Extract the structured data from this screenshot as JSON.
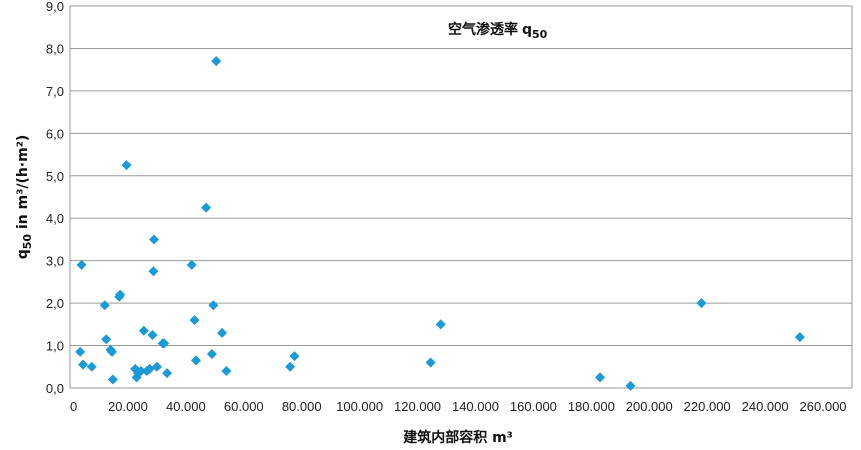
{
  "chart_data": {
    "type": "scatter",
    "title": "空气渗透率",
    "title_symbol": "q",
    "title_subscript": "50",
    "xlabel": "建筑内部容积 m³",
    "ylabel_main": "q",
    "ylabel_sub": "50",
    "ylabel_rest": " in m³/(h·m²)",
    "xlim": [
      0,
      270000
    ],
    "ylim": [
      0,
      9
    ],
    "x_ticks": [
      0,
      20000,
      40000,
      60000,
      80000,
      100000,
      120000,
      140000,
      160000,
      180000,
      200000,
      220000,
      240000,
      260000
    ],
    "x_tick_labels": [
      "0",
      "20.000",
      "40.000",
      "60.000",
      "80.000",
      "100.000",
      "120.000",
      "140.000",
      "160.000",
      "180.000",
      "200.000",
      "220.000",
      "240.000",
      "260.000"
    ],
    "y_ticks": [
      0,
      1,
      2,
      3,
      4,
      5,
      6,
      7,
      8,
      9
    ],
    "y_tick_labels": [
      "0,0",
      "1,0",
      "2,0",
      "3,0",
      "4,0",
      "5,0",
      "6,0",
      "7,0",
      "8,0",
      "9,0"
    ],
    "grid": "horizontal",
    "marker_color": "#1a9ad6",
    "points": [
      [
        3500,
        0.85
      ],
      [
        4000,
        2.9
      ],
      [
        4500,
        0.55
      ],
      [
        7500,
        0.5
      ],
      [
        12000,
        1.95
      ],
      [
        12500,
        1.15
      ],
      [
        14000,
        0.9
      ],
      [
        14500,
        0.85
      ],
      [
        14800,
        0.2
      ],
      [
        17000,
        2.15
      ],
      [
        17300,
        2.2
      ],
      [
        19500,
        5.25
      ],
      [
        22500,
        0.45
      ],
      [
        23000,
        0.25
      ],
      [
        23500,
        0.35
      ],
      [
        24500,
        0.4
      ],
      [
        25500,
        1.35
      ],
      [
        26500,
        0.4
      ],
      [
        27500,
        0.45
      ],
      [
        28500,
        1.25
      ],
      [
        28800,
        2.75
      ],
      [
        29000,
        3.5
      ],
      [
        30000,
        0.5
      ],
      [
        32000,
        1.05
      ],
      [
        32500,
        1.05
      ],
      [
        33500,
        0.35
      ],
      [
        42000,
        2.9
      ],
      [
        43000,
        1.6
      ],
      [
        43500,
        0.65
      ],
      [
        47000,
        4.25
      ],
      [
        49000,
        0.8
      ],
      [
        49500,
        1.95
      ],
      [
        50500,
        7.7
      ],
      [
        52500,
        1.3
      ],
      [
        54000,
        0.4
      ],
      [
        76000,
        0.5
      ],
      [
        77500,
        0.75
      ],
      [
        124500,
        0.6
      ],
      [
        128000,
        1.5
      ],
      [
        183000,
        0.25
      ],
      [
        193500,
        0.05
      ],
      [
        218000,
        2.0
      ],
      [
        252000,
        1.2
      ]
    ]
  }
}
